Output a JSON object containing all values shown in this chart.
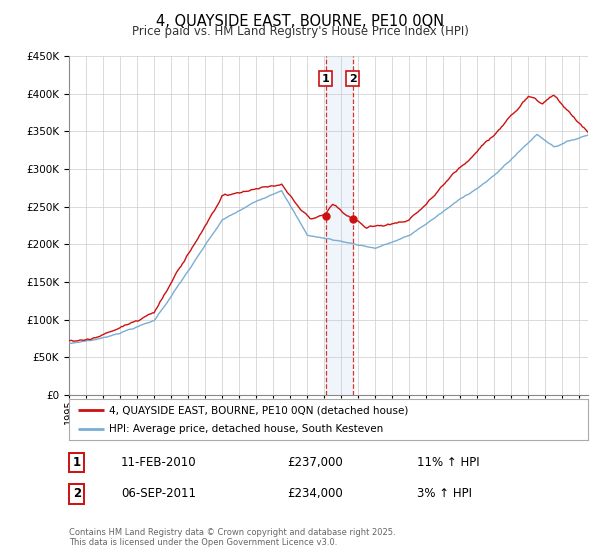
{
  "title": "4, QUAYSIDE EAST, BOURNE, PE10 0QN",
  "subtitle": "Price paid vs. HM Land Registry's House Price Index (HPI)",
  "legend_line1": "4, QUAYSIDE EAST, BOURNE, PE10 0QN (detached house)",
  "legend_line2": "HPI: Average price, detached house, South Kesteven",
  "transaction1_date": "11-FEB-2010",
  "transaction1_price": "£237,000",
  "transaction1_hpi": "11% ↑ HPI",
  "transaction2_date": "06-SEP-2011",
  "transaction2_price": "£234,000",
  "transaction2_hpi": "3% ↑ HPI",
  "transaction1_year": 2010.09,
  "transaction2_year": 2011.67,
  "t1_price_val": 237000,
  "t2_price_val": 234000,
  "footer": "Contains HM Land Registry data © Crown copyright and database right 2025.\nThis data is licensed under the Open Government Licence v3.0.",
  "hpi_color": "#7aadd4",
  "price_color": "#cc1111",
  "marker_color": "#cc1111",
  "bg_color": "#ffffff",
  "grid_color": "#cccccc",
  "ylim_min": 0,
  "ylim_max": 450000,
  "xlim_min": 1995,
  "xlim_max": 2025.5
}
